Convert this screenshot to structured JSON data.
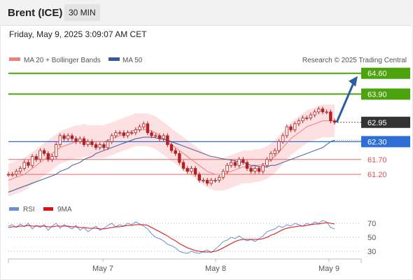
{
  "header": {
    "title": "Brent (ICE)",
    "interval": "30 MIN",
    "datetime": "Friday, May 9, 2025 3:09:07 AM CET"
  },
  "legend": {
    "ma20": "MA 20 + Bollinger Bands",
    "ma50": "MA 50",
    "copyright": "Research © 2025 Trading Central",
    "rsi": "RSI",
    "rsi_ma": "9MA"
  },
  "colors": {
    "ma20": "#f08080",
    "ma50": "#3a5a9a",
    "band": "#fcd5d8",
    "candle": "#b22222",
    "green_level": "#4ca30d",
    "blue_level": "#2e6fd6",
    "red_level": "#e05050",
    "last_price": "#333333",
    "arrow": "#2a5fa0",
    "rsi": "#6a8fd8",
    "rsi_ma": "#e01010"
  },
  "chart_data": [
    {
      "type": "candlestick",
      "ylim": [
        60.4,
        65.3
      ],
      "x_ticks": [
        "May 7",
        "May 8",
        "May 9"
      ],
      "levels": [
        {
          "label": "64.60",
          "value": 64.6,
          "kind": "resistance-2",
          "style": "green-box"
        },
        {
          "label": "63.90",
          "value": 63.9,
          "kind": "resistance-1",
          "style": "green-box"
        },
        {
          "label": "62.95",
          "value": 62.95,
          "kind": "last",
          "style": "dark-box"
        },
        {
          "label": "62.30",
          "value": 62.3,
          "kind": "pivot",
          "style": "blue-box"
        },
        {
          "label": "61.70",
          "value": 61.7,
          "kind": "support-1",
          "style": "red-text"
        },
        {
          "label": "61.20",
          "value": 61.2,
          "kind": "support-2",
          "style": "red-text"
        }
      ],
      "close": [
        61.2,
        61.2,
        61.3,
        61.4,
        61.6,
        61.5,
        61.8,
        61.7,
        62.0,
        61.9,
        61.7,
        61.8,
        62.2,
        62.5,
        62.4,
        62.5,
        62.4,
        62.3,
        62.4,
        62.2,
        62.3,
        62.2,
        62.1,
        62.2,
        62.1,
        62.3,
        62.5,
        62.6,
        62.6,
        62.5,
        62.6,
        62.6,
        62.7,
        62.8,
        62.9,
        62.6,
        62.5,
        62.5,
        62.4,
        62.5,
        62.2,
        62.0,
        61.9,
        61.6,
        61.4,
        61.3,
        61.4,
        61.2,
        61.0,
        61.0,
        60.9,
        61.0,
        61.0,
        61.1,
        61.3,
        61.5,
        61.6,
        61.5,
        61.7,
        61.6,
        61.4,
        61.3,
        61.4,
        61.3,
        61.5,
        61.7,
        61.9,
        62.0,
        62.3,
        62.5,
        62.8,
        62.7,
        62.9,
        63.0,
        63.1,
        63.1,
        63.2,
        63.3,
        63.4,
        63.3,
        63.3,
        63.0,
        62.95
      ],
      "ma20": [
        61.0,
        61.05,
        61.1,
        61.15,
        61.2,
        61.3,
        61.4,
        61.5,
        61.6,
        61.7,
        61.8,
        61.9,
        62.0,
        62.1,
        62.15,
        62.2,
        62.25,
        62.3,
        62.3,
        62.35,
        62.3,
        62.3,
        62.3,
        62.3,
        62.3,
        62.35,
        62.4,
        62.45,
        62.5,
        62.55,
        62.6,
        62.65,
        62.7,
        62.7,
        62.7,
        62.7,
        62.65,
        62.6,
        62.5,
        62.4,
        62.3,
        62.2,
        62.1,
        62.0,
        61.9,
        61.8,
        61.7,
        61.6,
        61.5,
        61.4,
        61.3,
        61.25,
        61.2,
        61.2,
        61.2,
        61.25,
        61.3,
        61.35,
        61.4,
        61.45,
        61.45,
        61.45,
        61.5,
        61.5,
        61.55,
        61.6,
        61.7,
        61.8,
        61.95,
        62.1,
        62.25,
        62.4,
        62.5,
        62.6,
        62.7,
        62.8,
        62.85,
        62.9,
        62.95,
        63.0,
        63.0,
        63.0,
        63.0
      ],
      "ma50": [
        60.6,
        60.65,
        60.7,
        60.75,
        60.8,
        60.85,
        60.9,
        60.95,
        61.0,
        61.05,
        61.1,
        61.15,
        61.2,
        61.3,
        61.35,
        61.4,
        61.5,
        61.55,
        61.6,
        61.7,
        61.75,
        61.8,
        61.9,
        61.95,
        62.0,
        62.05,
        62.1,
        62.15,
        62.2,
        62.25,
        62.3,
        62.35,
        62.4,
        62.42,
        62.45,
        62.45,
        62.45,
        62.43,
        62.4,
        62.38,
        62.35,
        62.3,
        62.25,
        62.2,
        62.15,
        62.1,
        62.05,
        62.0,
        61.95,
        61.9,
        61.85,
        61.8,
        61.78,
        61.75,
        61.72,
        61.7,
        61.68,
        61.65,
        61.62,
        61.6,
        61.55,
        61.5,
        61.5,
        61.45,
        61.45,
        61.45,
        61.5,
        61.5,
        61.55,
        61.6,
        61.65,
        61.7,
        61.75,
        61.8,
        61.85,
        61.9,
        61.95,
        62.0,
        62.05,
        62.1,
        62.2,
        62.3,
        62.35
      ],
      "band_width": 0.55
    },
    {
      "type": "line",
      "name": "RSI",
      "ylim": [
        20,
        80
      ],
      "y_ticks": [
        "70",
        "50",
        "30"
      ],
      "rsi": [
        66,
        68,
        64,
        69,
        65,
        70,
        62,
        67,
        64,
        68,
        60,
        66,
        70,
        63,
        68,
        65,
        62,
        67,
        60,
        64,
        58,
        62,
        66,
        60,
        63,
        67,
        70,
        65,
        68,
        66,
        70,
        68,
        72,
        69,
        66,
        62,
        55,
        50,
        48,
        45,
        40,
        38,
        35,
        30,
        28,
        27,
        30,
        28,
        27,
        30,
        32,
        28,
        33,
        38,
        44,
        46,
        50,
        48,
        52,
        48,
        45,
        47,
        44,
        48,
        52,
        58,
        60,
        62,
        66,
        64,
        68,
        66,
        70,
        68,
        66,
        70,
        68,
        72,
        70,
        74,
        72,
        64,
        62
      ],
      "rsi_ma": [
        64,
        65,
        65,
        66,
        66,
        67,
        66,
        66,
        66,
        66,
        65,
        65,
        66,
        66,
        66,
        66,
        65,
        65,
        64,
        64,
        63,
        63,
        63,
        62,
        62,
        63,
        64,
        65,
        65,
        66,
        67,
        67,
        68,
        68,
        68,
        67,
        64,
        61,
        58,
        55,
        52,
        48,
        45,
        41,
        38,
        35,
        33,
        31,
        30,
        29,
        29,
        29,
        30,
        32,
        35,
        38,
        41,
        44,
        46,
        47,
        47,
        47,
        47,
        47,
        48,
        50,
        53,
        55,
        58,
        61,
        63,
        64,
        65,
        66,
        66,
        67,
        68,
        69,
        69,
        70,
        71,
        70,
        69
      ]
    }
  ]
}
